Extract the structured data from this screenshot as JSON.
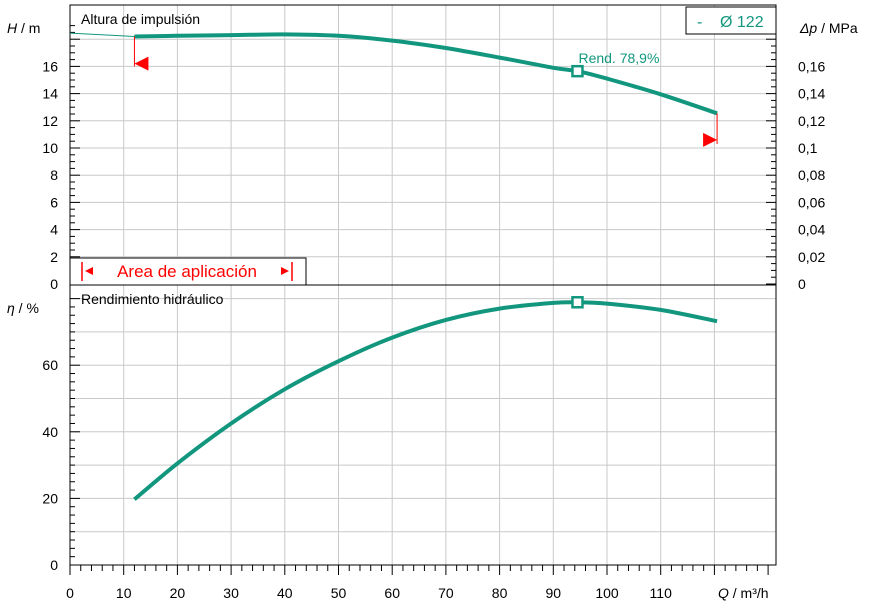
{
  "colors": {
    "curve": "#12977e",
    "area": "#ff0000",
    "grid": "#c9c9c9",
    "frame": "#000000"
  },
  "chart_data": [
    {
      "type": "line",
      "panel": "head",
      "title": "Altura de impulsión",
      "ylabel_symbol": "H",
      "ylabel_unit": "/ m",
      "y2label_symbol": "Δp",
      "y2label_unit": "/ MPa",
      "xlabel_symbol": "Q",
      "xlabel_unit": "/ m³/h",
      "xlim": [
        0,
        132
      ],
      "ylim": [
        0,
        19.5
      ],
      "y2lim": [
        0,
        0.195
      ],
      "x_ticks": [
        "0",
        "10",
        "20",
        "30",
        "40",
        "50",
        "60",
        "70",
        "80",
        "90",
        "100",
        "110"
      ],
      "y_ticks": [
        "0",
        "2",
        "4",
        "6",
        "8",
        "10",
        "12",
        "14",
        "16"
      ],
      "y2_ticks": [
        "0",
        "0,02",
        "0,04",
        "0,06",
        "0,08",
        "0,1",
        "0,12",
        "0,14",
        "0,16"
      ],
      "grid": true,
      "legend": "top-right",
      "series": [
        {
          "name": "Ø 122",
          "x": [
            12,
            20,
            30,
            40,
            50,
            60,
            70,
            80,
            90,
            94.5,
            100,
            110,
            120.5
          ],
          "y": [
            18.2,
            18.25,
            18.3,
            18.35,
            18.25,
            17.9,
            17.35,
            16.65,
            15.9,
            15.65,
            15.1,
            13.95,
            12.55
          ]
        }
      ],
      "thin_extension": {
        "x": [
          0,
          12
        ],
        "y": [
          18.45,
          18.2
        ]
      },
      "operating_point": {
        "x": 94.5,
        "y": 15.65,
        "label": "Rend.  78,9%"
      },
      "legend_prefix": "-",
      "application_range": {
        "label": "Area de aplicación",
        "x_min": 12,
        "x_max": 120.5
      }
    },
    {
      "type": "line",
      "panel": "efficiency",
      "title": "Rendimiento hidráulico",
      "ylabel_symbol": "η",
      "ylabel_unit": "/ %",
      "ylim": [
        0,
        82
      ],
      "y_ticks": [
        "0",
        "20",
        "40",
        "60"
      ],
      "grid": true,
      "series": [
        {
          "name": "Ø 122",
          "x": [
            12,
            20,
            30,
            40,
            50,
            60,
            70,
            80,
            90,
            94.5,
            100,
            110,
            120.5
          ],
          "y": [
            19.7,
            30.5,
            42.5,
            52.8,
            61.2,
            68.3,
            73.6,
            77.0,
            78.7,
            78.9,
            78.5,
            76.6,
            73.2
          ]
        }
      ],
      "operating_point": {
        "x": 94.5,
        "y": 78.9
      }
    }
  ]
}
